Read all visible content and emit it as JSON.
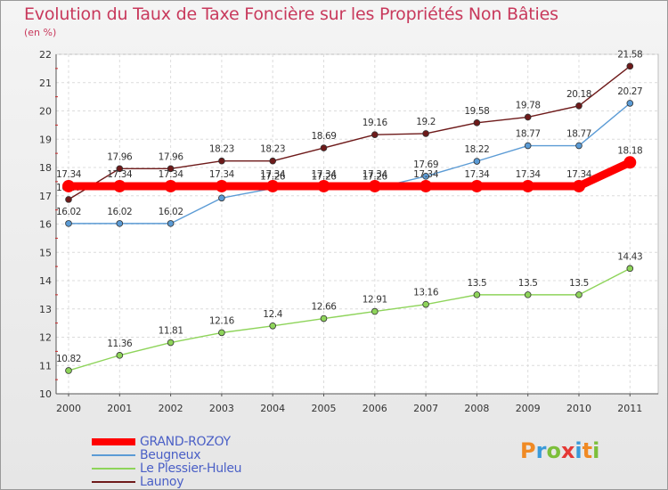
{
  "title": "Evolution du Taux de Taxe Foncière sur les Propriétés Non Bâties",
  "subtitle": "(en %)",
  "logo": {
    "letters": [
      "P",
      "r",
      "o",
      "x",
      "i",
      "t",
      "i"
    ],
    "colors": [
      "#f08a24",
      "#3a9ad9",
      "#7cbf3a",
      "#e53935",
      "#3a9ad9",
      "#f08a24",
      "#7cbf3a"
    ]
  },
  "chart_data": {
    "type": "line",
    "x": [
      "2000",
      "2001",
      "2002",
      "2003",
      "2004",
      "2005",
      "2006",
      "2007",
      "2008",
      "2009",
      "2010",
      "2011"
    ],
    "ylim": [
      10,
      22
    ],
    "yticks": [
      "10",
      "11",
      "12",
      "13",
      "14",
      "15",
      "16",
      "17",
      "18",
      "19",
      "20",
      "21",
      "22"
    ],
    "grid": true,
    "legend_position": "bottom-left",
    "series": [
      {
        "name": "Launoy",
        "color": "#6e1a1a",
        "values": [
          16.87,
          17.96,
          17.96,
          18.23,
          18.23,
          18.69,
          19.16,
          19.2,
          19.58,
          19.78,
          20.18,
          21.58
        ],
        "labels": [
          "16.87",
          "17.96",
          "17.96",
          "18.23",
          "18.23",
          "18.69",
          "19.16",
          "19.2",
          "19.58",
          "19.78",
          "20.18",
          "21.58"
        ]
      },
      {
        "name": "Beugneux",
        "color": "#5b9bd5",
        "values": [
          16.02,
          16.02,
          16.02,
          16.92,
          17.26,
          17.26,
          17.26,
          17.69,
          18.22,
          18.77,
          18.77,
          20.27
        ],
        "labels": [
          "16.02",
          "16.02",
          "16.02",
          "16.92",
          "17.26",
          "17.26",
          "17.26",
          "17.69",
          "18.22",
          "18.77",
          "18.77",
          "20.27"
        ]
      },
      {
        "name": "Le Plessier-Huleu",
        "color": "#8ed45a",
        "values": [
          10.82,
          11.36,
          11.81,
          12.16,
          12.4,
          12.66,
          12.91,
          13.16,
          13.5,
          13.5,
          13.5,
          14.43
        ],
        "labels": [
          "10.82",
          "11.36",
          "11.81",
          "12.16",
          "12.4",
          "12.66",
          "12.91",
          "13.16",
          "13.5",
          "13.5",
          "13.5",
          "14.43"
        ]
      },
      {
        "name": "GRAND-ROZOY",
        "color": "#ff0000",
        "values": [
          17.34,
          17.34,
          17.34,
          17.34,
          17.34,
          17.34,
          17.34,
          17.34,
          17.34,
          17.34,
          17.34,
          18.18
        ],
        "labels": [
          "17.34",
          "17.34",
          "17.34",
          "17.34",
          "17.34",
          "17.34",
          "17.34",
          "17.34",
          "17.34",
          "17.34",
          "17.34",
          "18.18"
        ]
      }
    ],
    "legend": [
      "GRAND-ROZOY",
      "Beugneux",
      "Le Plessier-Huleu",
      "Launoy"
    ]
  }
}
